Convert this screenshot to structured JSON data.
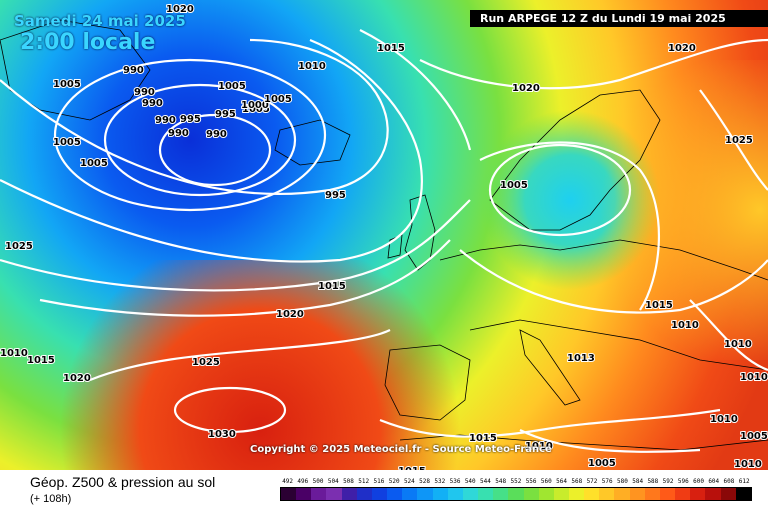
{
  "header": {
    "date": "Samedi 24 mai 2025",
    "time": "2:00 locale",
    "run": "Run ARPEGE 12 Z du Lundi 19 mai 2025"
  },
  "copyright": "Copyright © 2025 Meteociel.fr - Source Meteo-France",
  "footer": {
    "title": "Géop. Z500 & pression au sol",
    "subtitle": "(+ 108h)"
  },
  "legend": {
    "levels": [
      "492",
      "496",
      "500",
      "504",
      "508",
      "512",
      "516",
      "520",
      "524",
      "528",
      "532",
      "536",
      "540",
      "544",
      "548",
      "552",
      "556",
      "560",
      "564",
      "568",
      "572",
      "576",
      "580",
      "584",
      "588",
      "592",
      "596",
      "600",
      "604",
      "608",
      "612"
    ],
    "colors": [
      "#2b0033",
      "#4a0066",
      "#6a1b9a",
      "#7b2fb0",
      "#3f1fa8",
      "#1f2fc8",
      "#1040e0",
      "#0a5bf0",
      "#0a7af5",
      "#0e96f7",
      "#12b0f5",
      "#20c6ee",
      "#2fd8d8",
      "#38e0b0",
      "#46e088",
      "#5ade5a",
      "#7ae040",
      "#a0e630",
      "#c8ec2c",
      "#ecf02a",
      "#ffe02a",
      "#ffc828",
      "#ffae24",
      "#ff9420",
      "#ff781c",
      "#ff5a18",
      "#f03c14",
      "#d82010",
      "#b8100c",
      "#8a0808",
      "#000000"
    ]
  },
  "isobars": [
    {
      "text": "1020"
    },
    {
      "text": "1015"
    },
    {
      "text": "1020"
    },
    {
      "text": "1010"
    },
    {
      "text": "1020"
    },
    {
      "text": "1025"
    },
    {
      "text": "1005"
    },
    {
      "text": "990"
    },
    {
      "text": "990"
    },
    {
      "text": "990"
    },
    {
      "text": "1005"
    },
    {
      "text": "1005"
    },
    {
      "text": "990"
    },
    {
      "text": "995"
    },
    {
      "text": "995"
    },
    {
      "text": "1000"
    },
    {
      "text": "1005"
    },
    {
      "text": "990"
    },
    {
      "text": "990"
    },
    {
      "text": "1005"
    },
    {
      "text": "1005"
    },
    {
      "text": "995"
    },
    {
      "text": "1005"
    },
    {
      "text": "1025"
    },
    {
      "text": "1015"
    },
    {
      "text": "1020"
    },
    {
      "text": "1015"
    },
    {
      "text": "1010"
    },
    {
      "text": "1010"
    },
    {
      "text": "1025"
    },
    {
      "text": "1010"
    },
    {
      "text": "1015"
    },
    {
      "text": "1020"
    },
    {
      "text": "1013"
    },
    {
      "text": "1010"
    },
    {
      "text": "1030"
    },
    {
      "text": "1015"
    },
    {
      "text": "1010"
    },
    {
      "text": "1015"
    },
    {
      "text": "1005"
    },
    {
      "text": "1010"
    },
    {
      "text": "1010"
    },
    {
      "text": "1005"
    }
  ]
}
